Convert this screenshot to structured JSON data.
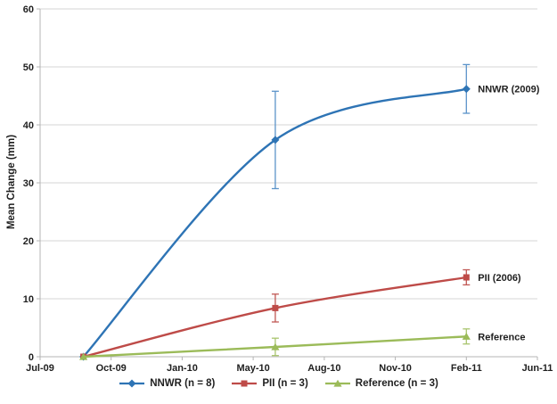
{
  "chart_data": {
    "type": "line",
    "title": "",
    "xlabel": "",
    "ylabel": "Mean Change (mm)",
    "ylim": [
      0,
      60
    ],
    "yticks": [
      0,
      10,
      20,
      30,
      40,
      50,
      60
    ],
    "xticks": [
      "Jul-09",
      "Oct-09",
      "Jan-10",
      "May-10",
      "Aug-10",
      "Nov-10",
      "Feb-11",
      "Jun-11"
    ],
    "x_unit_note": "series x positions are in x-tick index units (0 = Jul-09 tick, 7 = Jun-11 tick)",
    "grid": "horizontal-major-only",
    "legend_position": "bottom-center",
    "background_color": "#ffffff",
    "gridline_color": "#d4d4d4",
    "axis_color": "#b4b4b4",
    "text_color": "#1f1f1f",
    "series": [
      {
        "name": "NNWR (n = 8)",
        "end_label": "NNWR (2009)",
        "color": "#2e74b5",
        "error_color": "#5b93c9",
        "marker": "diamond",
        "smooth": true,
        "x": [
          0.61,
          3.31,
          6.0
        ],
        "values": [
          0,
          37.4,
          46.2
        ],
        "errors": [
          0,
          8.4,
          4.2
        ]
      },
      {
        "name": "PII (n = 3)",
        "end_label": "PII (2006)",
        "color": "#be4b48",
        "error_color": "#c05854",
        "marker": "square",
        "smooth": true,
        "x": [
          0.61,
          3.31,
          6.0
        ],
        "values": [
          0,
          8.4,
          13.7
        ],
        "errors": [
          0,
          2.4,
          1.3
        ]
      },
      {
        "name": "Reference (n = 3)",
        "end_label": "Reference",
        "color": "#9bbb59",
        "error_color": "#a9c56e",
        "marker": "triangle",
        "smooth": true,
        "x": [
          0.61,
          3.31,
          6.0
        ],
        "values": [
          0,
          1.7,
          3.5
        ],
        "errors": [
          0,
          1.5,
          1.3
        ]
      }
    ]
  }
}
